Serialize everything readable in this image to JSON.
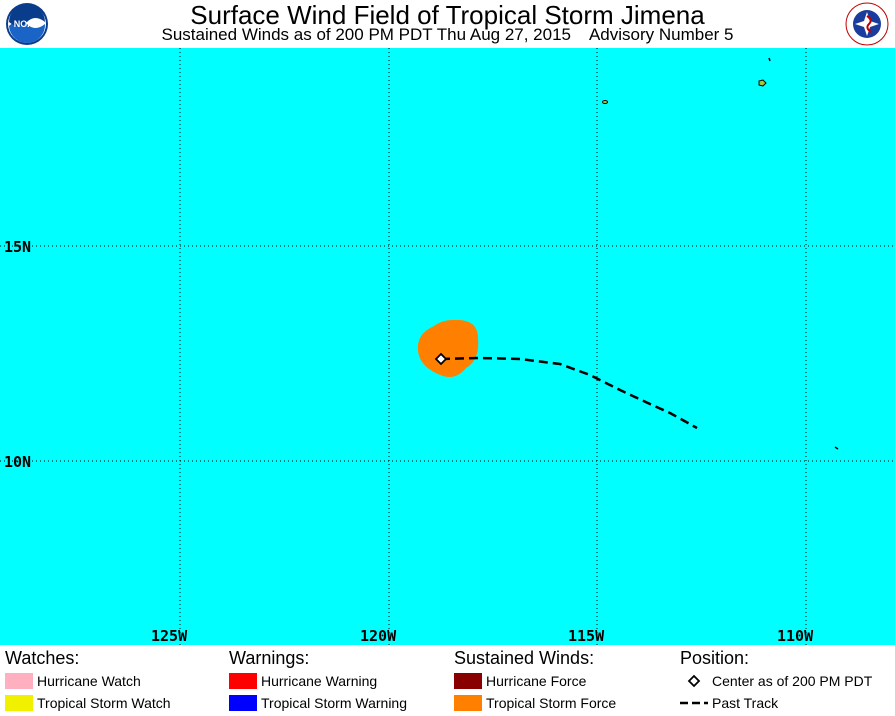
{
  "header": {
    "title": "Surface Wind Field of Tropical Storm Jimena",
    "subtitle": "Sustained Winds as of 200 PM PDT Thu Aug 27, 2015    Advisory Number 5",
    "logo_left": "NOAA",
    "logo_right": "NATIONAL WEATHER SERVICE"
  },
  "map": {
    "ocean_color": "#00ffff",
    "land_color": "#a0c83c",
    "lat_labels": [
      "15N",
      "10N"
    ],
    "lon_labels": [
      "125W",
      "120W",
      "115W",
      "110W"
    ],
    "grid": "dotted",
    "storm": {
      "wind_field": "Tropical Storm Force",
      "wind_field_color": "#ff8000",
      "center_marker": "diamond"
    }
  },
  "legend": {
    "watches": {
      "heading": "Watches:",
      "items": [
        {
          "label": "Hurricane Watch",
          "color": "#ffb0c0"
        },
        {
          "label": "Tropical Storm Watch",
          "color": "#f0f000"
        }
      ]
    },
    "warnings": {
      "heading": "Warnings:",
      "items": [
        {
          "label": "Hurricane Warning",
          "color": "#ff0000"
        },
        {
          "label": "Tropical Storm Warning",
          "color": "#0000ff"
        }
      ]
    },
    "winds": {
      "heading": "Sustained Winds:",
      "items": [
        {
          "label": "Hurricane Force",
          "color": "#880000"
        },
        {
          "label": "Tropical Storm Force",
          "color": "#ff8000"
        }
      ]
    },
    "position": {
      "heading": "Position:",
      "items": [
        {
          "label": "Center as of 200 PM PDT",
          "icon": "diamond-icon"
        },
        {
          "label": "Past Track",
          "icon": "dashed-line-icon"
        }
      ]
    }
  }
}
